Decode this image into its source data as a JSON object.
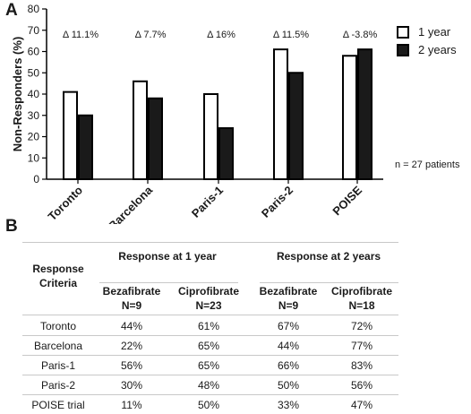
{
  "panel_a_letter": "A",
  "panel_b_letter": "B",
  "patients_note": "n = 27 patients",
  "colors": {
    "year1_fill": "#ffffff",
    "year2_fill": "#1a1a1a",
    "stroke": "#000000"
  },
  "chart_data": {
    "type": "bar",
    "ylabel": "Non-Responders (%)",
    "xlabel": "",
    "ylim": [
      0,
      80
    ],
    "yticks": [
      0,
      10,
      20,
      30,
      40,
      50,
      60,
      70,
      80
    ],
    "categories": [
      "Toronto",
      "Barcelona",
      "Paris-1",
      "Paris-2",
      "POISE"
    ],
    "series": [
      {
        "name": "1 year",
        "values": [
          41,
          46,
          40,
          61,
          58
        ]
      },
      {
        "name": "2 years",
        "values": [
          30,
          38,
          24,
          50,
          61
        ]
      }
    ],
    "annotations": [
      "Δ 11.1%",
      "Δ 7.7%",
      "Δ 16%",
      "Δ 11.5%",
      "Δ -3.8%"
    ],
    "legend": "top-right",
    "grid": false
  },
  "table": {
    "criteria_header": "Response Criteria",
    "group_headers": [
      "Response at 1 year",
      "Response at 2 years"
    ],
    "sub_headers": [
      {
        "drug": "Bezafibrate",
        "n": "N=9"
      },
      {
        "drug": "Ciprofibrate",
        "n": "N=23"
      },
      {
        "drug": "Bezafibrate",
        "n": "N=9"
      },
      {
        "drug": "Ciprofibrate",
        "n": "N=18"
      }
    ],
    "rows": [
      {
        "label": "Toronto",
        "values": [
          "44%",
          "61%",
          "67%",
          "72%"
        ]
      },
      {
        "label": "Barcelona",
        "values": [
          "22%",
          "65%",
          "44%",
          "77%"
        ]
      },
      {
        "label": "Paris-1",
        "values": [
          "56%",
          "65%",
          "66%",
          "83%"
        ]
      },
      {
        "label": "Paris-2",
        "values": [
          "30%",
          "48%",
          "50%",
          "56%"
        ]
      },
      {
        "label": "POISE trial",
        "values": [
          "11%",
          "50%",
          "33%",
          "47%"
        ]
      }
    ]
  }
}
